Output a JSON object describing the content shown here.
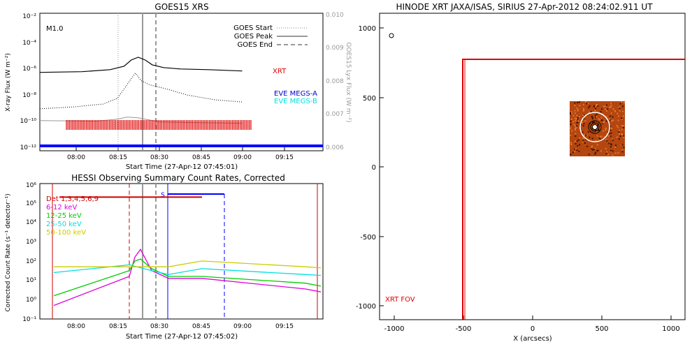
{
  "panels": {
    "goes": {
      "title": "GOES15 XRS",
      "xlabel": "Start Time (27-Apr-12 07:45:01)",
      "ylabel_left": "X-ray Flux (W m⁻²)",
      "ylabel_right": "GOES15 Lyx Flux (W m⁻²)",
      "flare_class": "M1.0",
      "legend": [
        "GOES Start",
        "GOES Peak",
        "GOES End"
      ],
      "curve_labels": {
        "xrt": "XRT",
        "megs_a": "EVE MEGS-A",
        "megs_b": "EVE MEGS-B"
      },
      "x_ticks": [
        "08:00",
        "08:15",
        "08:30",
        "08:45",
        "09:00",
        "09:15"
      ],
      "y_ticks_left": [
        "10⁻¹²",
        "10⁻¹⁰",
        "10⁻⁸",
        "10⁻⁶",
        "10⁻⁴",
        "10⁻²"
      ],
      "y_ticks_right": [
        "0.006",
        "0.007",
        "0.008",
        "0.009",
        "0.010"
      ]
    },
    "hessi": {
      "title": "HESSI Observing Summary Count Rates, Corrected",
      "xlabel": "Start Time (27-Apr-12 07:45:02)",
      "ylabel": "Corrected Count Rate (s⁻¹ detector⁻¹)",
      "legend": [
        "Det 1,3,4,5,6,9",
        "6-12 keV",
        "12-25 keV",
        "25-50 keV",
        "50-100 keV"
      ],
      "marker": "S",
      "x_ticks": [
        "08:00",
        "08:15",
        "08:30",
        "08:45",
        "09:00",
        "09:15"
      ],
      "y_ticks": [
        "10⁻¹",
        "10⁰",
        "10¹",
        "10²",
        "10³",
        "10⁴",
        "10⁵",
        "10⁶"
      ]
    },
    "xrt": {
      "title": "HINODE XRT JAXA/ISAS, SIRIUS 27-Apr-2012 08:24:02.911 UT",
      "xlabel": "X (arcsecs)",
      "fov_label": "XRT FOV",
      "x_ticks": [
        "-1000",
        "-500",
        "0",
        "500",
        "1000"
      ],
      "y_ticks": [
        "-1000",
        "-500",
        "0",
        "500",
        "1000"
      ]
    }
  },
  "colors": {
    "xrt_red": "#e00000",
    "megs_a": "#0000cc",
    "megs_b": "#00e0e0",
    "det": "#cc0000",
    "e6_12": "#e000e0",
    "e12_25": "#00cc00",
    "e25_50": "#00e0e0",
    "e50_100": "#cccc00",
    "blue": "#0000ff",
    "gray": "#999999"
  },
  "chart_data": [
    {
      "type": "line",
      "title": "GOES15 XRS",
      "x_range": [
        "07:45",
        "09:27"
      ],
      "ylim_log": [
        -12,
        -2
      ],
      "ylim_right": [
        0.006,
        0.01
      ],
      "series": [
        {
          "name": "XRT",
          "points": [
            [
              0,
              -6.3
            ],
            [
              30,
              -6.25
            ],
            [
              50,
              -6.1
            ],
            [
              60,
              -5.85
            ],
            [
              65,
              -5.4
            ],
            [
              70,
              -5.2
            ],
            [
              75,
              -5.4
            ],
            [
              80,
              -5.75
            ],
            [
              88,
              -5.95
            ],
            [
              100,
              -6.05
            ],
            [
              120,
              -6.1
            ],
            [
              144,
              -6.2
            ]
          ]
        },
        {
          "name": "GOES short",
          "points": [
            [
              0,
              -8.95
            ],
            [
              25,
              -8.8
            ],
            [
              45,
              -8.6
            ],
            [
              55,
              -8.2
            ],
            [
              60,
              -7.5
            ],
            [
              64,
              -6.9
            ],
            [
              68,
              -6.35
            ],
            [
              72,
              -6.9
            ],
            [
              78,
              -7.2
            ],
            [
              90,
              -7.5
            ],
            [
              105,
              -7.95
            ],
            [
              125,
              -8.3
            ],
            [
              144,
              -8.45
            ]
          ]
        },
        {
          "name": "GOES long",
          "points": [
            [
              0,
              -9.8
            ],
            [
              40,
              -9.85
            ],
            [
              55,
              -9.7
            ],
            [
              62,
              -9.55
            ],
            [
              70,
              -9.6
            ],
            [
              85,
              -9.9
            ],
            [
              110,
              -9.95
            ],
            [
              144,
              -10.0
            ]
          ]
        }
      ],
      "flare_times": {
        "start": "08:17",
        "peak": "08:24",
        "end": "08:28"
      }
    },
    {
      "type": "line",
      "title": "HESSI Observing Summary Count Rates, Corrected",
      "x_range": [
        "07:45",
        "09:27"
      ],
      "ylim_log": [
        -1,
        6
      ],
      "series": [
        {
          "name": "Det 1,3,4,5,6,9",
          "points": [
            [
              14,
              5.3
            ],
            [
              116,
              5.3
            ]
          ]
        },
        {
          "name": "6-12 keV",
          "points": [
            [
              10,
              -0.3
            ],
            [
              64,
              1.2
            ],
            [
              68,
              2.2
            ],
            [
              72,
              2.6
            ],
            [
              80,
              1.5
            ],
            [
              92,
              1.1
            ],
            [
              116,
              1.1
            ],
            [
              190,
              0.55
            ],
            [
              201,
              0.4
            ]
          ]
        },
        {
          "name": "12-25 keV",
          "points": [
            [
              10,
              0.2
            ],
            [
              64,
              1.5
            ],
            [
              68,
              2.0
            ],
            [
              72,
              2.1
            ],
            [
              80,
              1.6
            ],
            [
              92,
              1.2
            ],
            [
              116,
              1.2
            ],
            [
              190,
              0.85
            ],
            [
              201,
              0.7
            ]
          ]
        },
        {
          "name": "25-50 keV",
          "points": [
            [
              10,
              1.4
            ],
            [
              64,
              1.8
            ],
            [
              80,
              1.5
            ],
            [
              92,
              1.3
            ],
            [
              116,
              1.6
            ],
            [
              190,
              1.3
            ],
            [
              201,
              1.25
            ]
          ]
        },
        {
          "name": "50-100 keV",
          "points": [
            [
              10,
              1.7
            ],
            [
              92,
              1.7
            ],
            [
              116,
              2.0
            ],
            [
              190,
              1.7
            ],
            [
              201,
              1.65
            ]
          ]
        }
      ]
    },
    {
      "type": "scatter",
      "title": "HINODE XRT JAXA/ISAS, SIRIUS 27-Apr-2012 08:24:02.911 UT",
      "xlim": [
        -1100,
        1100
      ],
      "ylim": [
        -1100,
        1100
      ],
      "fov_x_left": -490,
      "fov_y_top": 790,
      "image_center": [
        450,
        300
      ]
    }
  ]
}
